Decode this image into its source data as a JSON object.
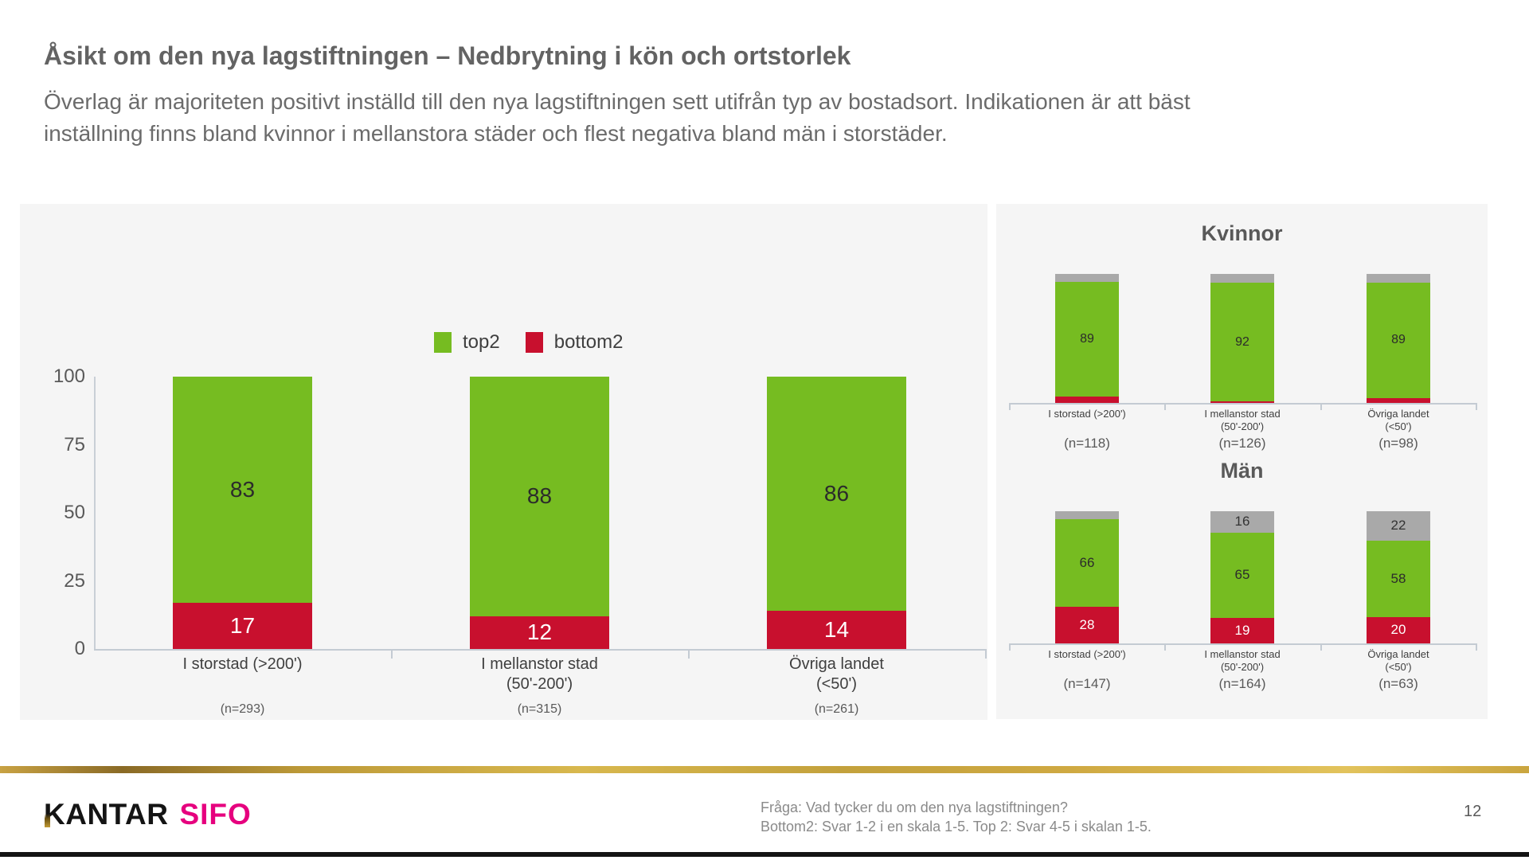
{
  "slide": {
    "title": "Åsikt om den nya lagstiftningen – Nedbrytning i kön och ortstorlek",
    "subtitle": "Överlag är majoriteten positivt inställd till den nya lagstiftningen sett utifrån typ av bostadsort. Indikationen är att bäst inställning finns bland kvinnor i mellanstora städer och flest negativa bland män i storstäder.",
    "page_number": "12",
    "footer": {
      "line1": "Fråga: Vad tycker du om den nya lagstiftningen?",
      "line2": "Bottom2: Svar 1-2 i en skala 1-5. Top 2: Svar 4-5 i skalan 1-5."
    },
    "logo": {
      "kantar": "KANTAR",
      "sifo": "SIFO"
    }
  },
  "colors": {
    "top2_green": "#76BC21",
    "bottom2_red": "#C8102E",
    "rest_gray": "#A9A9A9",
    "panel_bg": "#F5F5F5",
    "axis": "#C4CBD3",
    "gold_line": "#C9A53E",
    "sifo_pink": "#E6007E",
    "text_gray": "#595959"
  },
  "chart_data": [
    {
      "id": "by-city-total",
      "type": "bar",
      "stacked": true,
      "title": "",
      "legend": [
        {
          "label": "top2",
          "color": "#76BC21"
        },
        {
          "label": "bottom2",
          "color": "#C8102E"
        }
      ],
      "legend_position": "top-center",
      "categories": [
        [
          "I storstad (>200')"
        ],
        [
          "I mellanstor stad",
          "(50'-200')"
        ],
        [
          "Övriga landet",
          "(<50')"
        ]
      ],
      "n_labels": [
        "(n=293)",
        "(n=315)",
        "(n=261)"
      ],
      "yticks": [
        0,
        25,
        50,
        75,
        100
      ],
      "ylim": [
        0,
        100
      ],
      "grid": false,
      "series": [
        {
          "name": "bottom2",
          "color": "#C8102E",
          "text_color": "#FFFFFF",
          "values": [
            17,
            12,
            14
          ],
          "labels": [
            "17",
            "12",
            "14"
          ]
        },
        {
          "name": "top2",
          "color": "#76BC21",
          "text_color": "#2B2B2B",
          "values": [
            83,
            88,
            86
          ],
          "labels": [
            "83",
            "88",
            "86"
          ]
        }
      ]
    },
    {
      "id": "kvinnor",
      "type": "bar",
      "stacked": true,
      "title": "Kvinnor",
      "categories": [
        [
          "I storstad (>200')"
        ],
        [
          "I mellanstor stad",
          "(50'-200')"
        ],
        [
          "Övriga landet",
          "(<50')"
        ]
      ],
      "n_labels": [
        "(n=118)",
        "(n=126)",
        "(n=98)"
      ],
      "ylim": [
        0,
        100
      ],
      "series": [
        {
          "name": "bottom2",
          "color": "#C8102E",
          "text_color": "#FFFFFF",
          "values": [
            5,
            1,
            4
          ],
          "labels": [
            "",
            "",
            ""
          ],
          "estimated": true
        },
        {
          "name": "top2",
          "color": "#76BC21",
          "text_color": "#2B2B2B",
          "values": [
            89,
            92,
            89
          ],
          "labels": [
            "89",
            "92",
            "89"
          ]
        },
        {
          "name": "rest",
          "color": "#A9A9A9",
          "text_color": "#333333",
          "values": [
            6,
            7,
            7
          ],
          "labels": [
            "",
            "",
            ""
          ],
          "estimated": true
        }
      ]
    },
    {
      "id": "man",
      "type": "bar",
      "stacked": true,
      "title": "Män",
      "categories": [
        [
          "I storstad (>200')"
        ],
        [
          "I mellanstor stad",
          "(50'-200')"
        ],
        [
          "Övriga landet",
          "(<50')"
        ]
      ],
      "n_labels": [
        "(n=147)",
        "(n=164)",
        "(n=63)"
      ],
      "ylim": [
        0,
        100
      ],
      "series": [
        {
          "name": "bottom2",
          "color": "#C8102E",
          "text_color": "#FFFFFF",
          "values": [
            28,
            19,
            20
          ],
          "labels": [
            "28",
            "19",
            "20"
          ]
        },
        {
          "name": "top2",
          "color": "#76BC21",
          "text_color": "#2B2B2B",
          "values": [
            66,
            65,
            58
          ],
          "labels": [
            "66",
            "65",
            "58"
          ]
        },
        {
          "name": "rest",
          "color": "#A9A9A9",
          "text_color": "#333333",
          "values": [
            6,
            16,
            22
          ],
          "labels": [
            "",
            "16",
            "22"
          ],
          "estimated_first": true
        }
      ]
    }
  ]
}
